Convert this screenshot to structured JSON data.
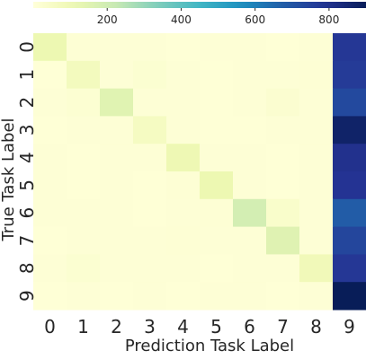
{
  "chart_data": {
    "type": "heatmap",
    "title": "",
    "xlabel": "Prediction Task Label",
    "ylabel": "True Task Label",
    "x_categories": [
      "0",
      "1",
      "2",
      "3",
      "4",
      "5",
      "6",
      "7",
      "8",
      "9"
    ],
    "y_categories": [
      "0",
      "1",
      "2",
      "3",
      "4",
      "5",
      "6",
      "7",
      "8",
      "9"
    ],
    "colorbar": {
      "colormap": "YlGnBu",
      "range": [
        0,
        900
      ],
      "ticks": [
        200,
        400,
        600,
        800
      ],
      "tick_labels": [
        "200",
        "400",
        "600",
        "800"
      ],
      "placement": "top"
    },
    "matrix": [
      [
        110,
        15,
        10,
        12,
        8,
        10,
        10,
        8,
        10,
        780
      ],
      [
        8,
        75,
        12,
        22,
        10,
        8,
        12,
        10,
        15,
        770
      ],
      [
        10,
        20,
        150,
        12,
        10,
        8,
        10,
        25,
        10,
        730
      ],
      [
        8,
        10,
        12,
        65,
        10,
        8,
        8,
        10,
        12,
        870
      ],
      [
        10,
        8,
        10,
        12,
        105,
        10,
        10,
        8,
        10,
        800
      ],
      [
        10,
        8,
        10,
        8,
        15,
        110,
        10,
        8,
        10,
        790
      ],
      [
        10,
        12,
        10,
        8,
        10,
        15,
        190,
        40,
        10,
        680
      ],
      [
        8,
        10,
        12,
        10,
        15,
        10,
        12,
        155,
        12,
        740
      ],
      [
        10,
        22,
        10,
        12,
        10,
        8,
        12,
        10,
        90,
        780
      ],
      [
        8,
        10,
        8,
        10,
        8,
        10,
        10,
        8,
        12,
        900
      ]
    ]
  }
}
